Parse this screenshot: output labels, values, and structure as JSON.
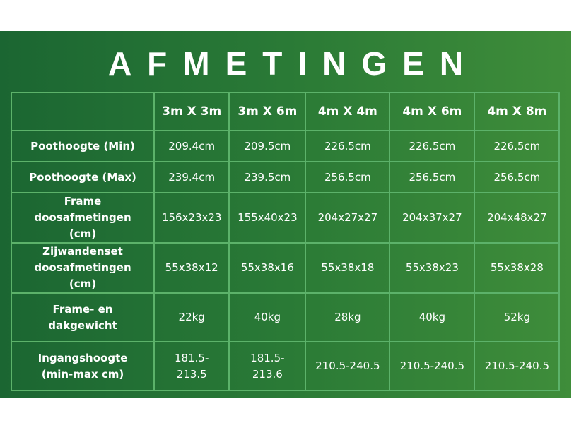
{
  "title": "AFMETINGEN",
  "columns": [
    "",
    "3m X 3m",
    "3m X 6m",
    "4m X 4m",
    "4m X 6m",
    "4m X 8m"
  ],
  "rows": [
    {
      "label": "Poothoogte (Min)",
      "values": [
        "209.4cm",
        "209.5cm",
        "226.5cm",
        "226.5cm",
        "226.5cm"
      ]
    },
    {
      "label": "Poothoogte (Max)",
      "values": [
        "239.4cm",
        "239.5cm",
        "256.5cm",
        "256.5cm",
        "256.5cm"
      ]
    },
    {
      "label": "Frame doosafmetingen (cm)",
      "values": [
        "156x23x23",
        "155x40x23",
        "204x27x27",
        "204x37x27",
        "204x48x27"
      ]
    },
    {
      "label": "Zijwandenset doosafmetingen (cm)",
      "values": [
        "55x38x12",
        "55x38x16",
        "55x38x18",
        "55x38x23",
        "55x38x28"
      ]
    },
    {
      "label": "Frame- en dakgewicht",
      "values": [
        "22kg",
        "40kg",
        "28kg",
        "40kg",
        "52kg"
      ]
    },
    {
      "label": "Ingangshoogte (min-max cm)",
      "values": [
        "181.5-213.5",
        "181.5-213.6",
        "210.5-240.5",
        "210.5-240.5",
        "210.5-240.5"
      ]
    }
  ],
  "colors": {
    "background_left": "#1b6632",
    "background_right": "#3f8d3a",
    "grid": "#5cb26a",
    "text": "#ffffff"
  }
}
